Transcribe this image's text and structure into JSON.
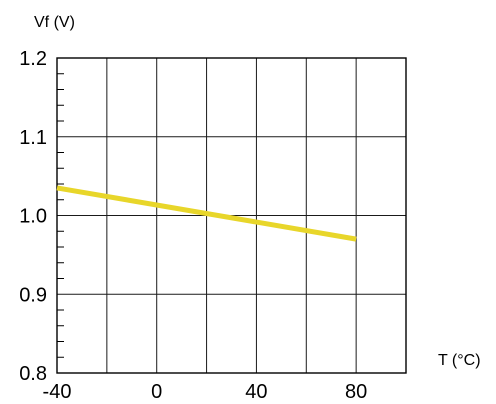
{
  "chart_data": {
    "type": "line",
    "ylabel": "Vf (V)",
    "xlabel": "T (°C)",
    "xlim": [
      -40,
      100
    ],
    "ylim": [
      0.8,
      1.2
    ],
    "xticks": [
      -40,
      -20,
      0,
      20,
      40,
      60,
      80,
      100
    ],
    "xtick_labels": [
      "-40",
      "",
      "0",
      "",
      "40",
      "",
      "80",
      ""
    ],
    "yticks": [
      0.8,
      0.9,
      1.0,
      1.1,
      1.2
    ],
    "ytick_labels": [
      "0.8",
      "0.9",
      "1.0",
      "1.1",
      "1.2"
    ],
    "grid": true,
    "series": [
      {
        "x": [
          -40,
          80
        ],
        "y": [
          1.035,
          0.97
        ],
        "color": "#e8d62a"
      }
    ]
  }
}
